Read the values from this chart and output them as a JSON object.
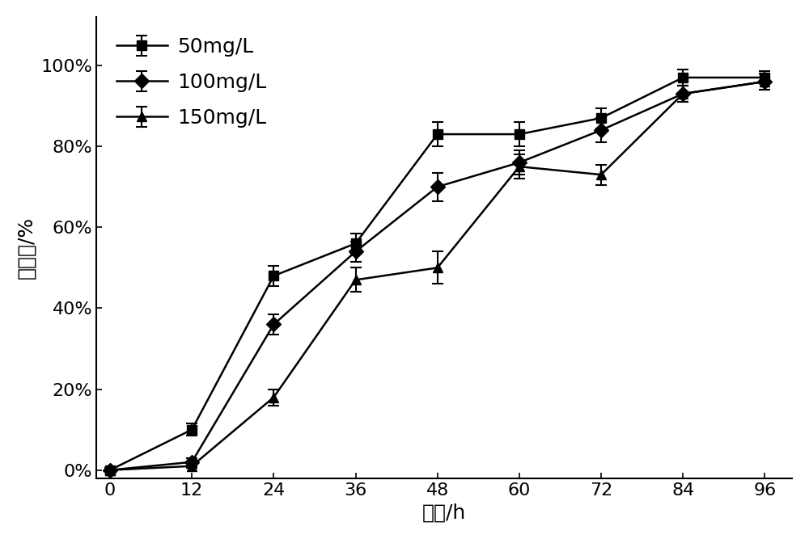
{
  "x": [
    0,
    12,
    24,
    36,
    48,
    60,
    72,
    84,
    96
  ],
  "series": [
    {
      "label": "50mg/L",
      "y": [
        0,
        0.1,
        0.48,
        0.56,
        0.83,
        0.83,
        0.87,
        0.97,
        0.97
      ],
      "yerr": [
        0.005,
        0.015,
        0.025,
        0.025,
        0.03,
        0.03,
        0.025,
        0.02,
        0.015
      ],
      "marker": "s",
      "color": "#000000"
    },
    {
      "label": "100mg/L",
      "y": [
        0,
        0.02,
        0.36,
        0.54,
        0.7,
        0.76,
        0.84,
        0.93,
        0.96
      ],
      "yerr": [
        0.005,
        0.01,
        0.025,
        0.025,
        0.035,
        0.03,
        0.03,
        0.02,
        0.02
      ],
      "marker": "D",
      "color": "#000000"
    },
    {
      "label": "150mg/L",
      "y": [
        0,
        0.01,
        0.18,
        0.47,
        0.5,
        0.75,
        0.73,
        0.93,
        0.96
      ],
      "yerr": [
        0.005,
        0.005,
        0.02,
        0.03,
        0.04,
        0.03,
        0.025,
        0.02,
        0.02
      ],
      "marker": "^",
      "color": "#000000"
    }
  ],
  "xlabel": "时间/h",
  "ylabel": "降解率/%",
  "xlim": [
    -2,
    100
  ],
  "ylim": [
    -0.02,
    1.12
  ],
  "yticks": [
    0,
    0.2,
    0.4,
    0.6,
    0.8,
    1.0
  ],
  "ytick_labels": [
    "0%",
    "20%",
    "40%",
    "60%",
    "80%",
    "100%"
  ],
  "xticks": [
    0,
    12,
    24,
    36,
    48,
    60,
    72,
    84,
    96
  ],
  "background_color": "#ffffff",
  "tick_fontsize": 16,
  "label_fontsize": 18,
  "legend_fontsize": 18,
  "legend_loc": "upper left"
}
